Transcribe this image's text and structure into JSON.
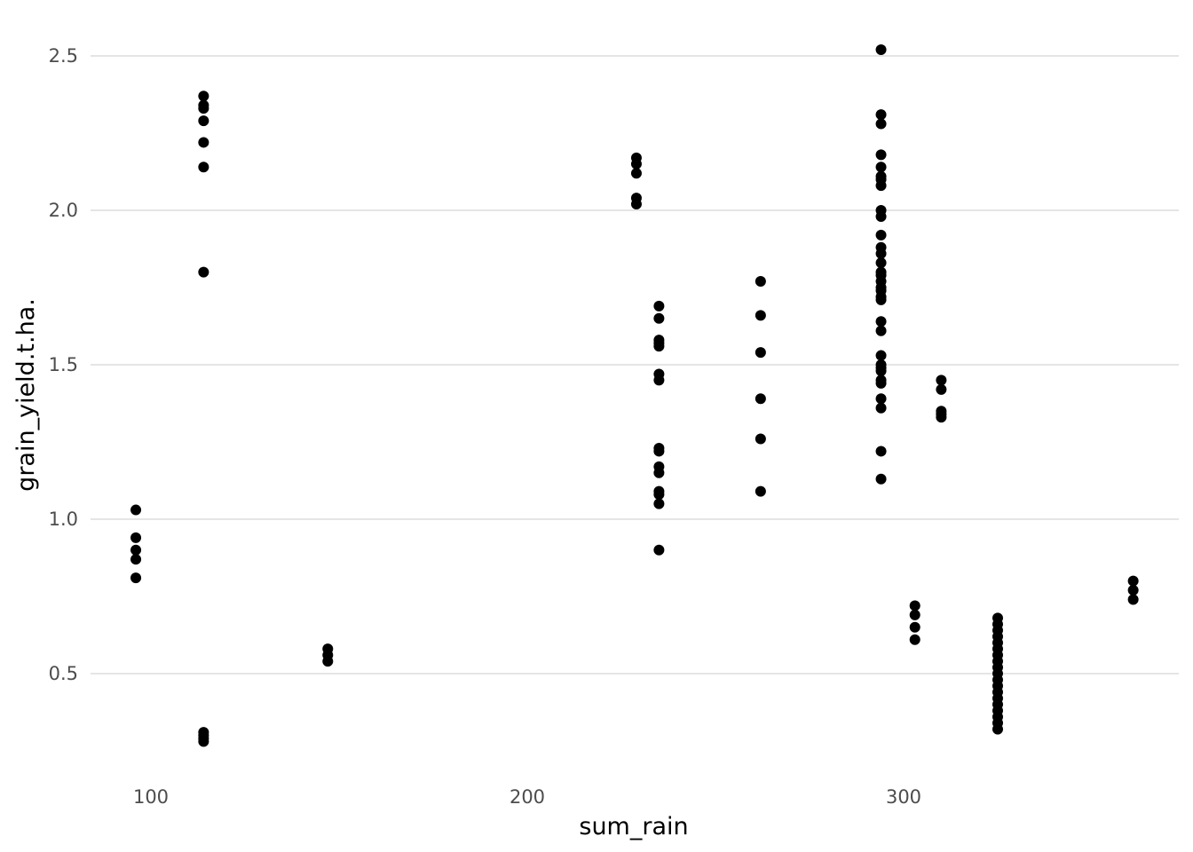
{
  "chart_data": {
    "type": "scatter",
    "title": "",
    "xlabel": "sum_rain",
    "ylabel": "grain_yield.t.ha.",
    "xlim": [
      84,
      378
    ],
    "ylim": [
      0.2,
      2.57
    ],
    "x_ticks": [
      100,
      200,
      300
    ],
    "y_ticks": [
      0.5,
      1.0,
      1.5,
      2.0,
      2.5
    ],
    "x_tick_labels": [
      "100",
      "200",
      "300"
    ],
    "y_tick_labels": [
      "0.5",
      "1.0",
      "1.5",
      "2.0",
      "2.5"
    ],
    "grid": true,
    "legend": "none",
    "point_color": "#000000",
    "points": [
      {
        "x": 96,
        "y": 1.03
      },
      {
        "x": 96,
        "y": 0.94
      },
      {
        "x": 96,
        "y": 0.9
      },
      {
        "x": 96,
        "y": 0.87
      },
      {
        "x": 96,
        "y": 0.81
      },
      {
        "x": 114,
        "y": 2.37
      },
      {
        "x": 114,
        "y": 2.34
      },
      {
        "x": 114,
        "y": 2.33
      },
      {
        "x": 114,
        "y": 2.29
      },
      {
        "x": 114,
        "y": 2.22
      },
      {
        "x": 114,
        "y": 2.14
      },
      {
        "x": 114,
        "y": 1.8
      },
      {
        "x": 114,
        "y": 0.31
      },
      {
        "x": 114,
        "y": 0.3
      },
      {
        "x": 114,
        "y": 0.29
      },
      {
        "x": 114,
        "y": 0.28
      },
      {
        "x": 147,
        "y": 0.58
      },
      {
        "x": 147,
        "y": 0.56
      },
      {
        "x": 147,
        "y": 0.54
      },
      {
        "x": 229,
        "y": 2.17
      },
      {
        "x": 229,
        "y": 2.15
      },
      {
        "x": 229,
        "y": 2.12
      },
      {
        "x": 229,
        "y": 2.04
      },
      {
        "x": 229,
        "y": 2.02
      },
      {
        "x": 235,
        "y": 1.69
      },
      {
        "x": 235,
        "y": 1.65
      },
      {
        "x": 235,
        "y": 1.58
      },
      {
        "x": 235,
        "y": 1.57
      },
      {
        "x": 235,
        "y": 1.56
      },
      {
        "x": 235,
        "y": 1.47
      },
      {
        "x": 235,
        "y": 1.45
      },
      {
        "x": 235,
        "y": 1.23
      },
      {
        "x": 235,
        "y": 1.22
      },
      {
        "x": 235,
        "y": 1.17
      },
      {
        "x": 235,
        "y": 1.15
      },
      {
        "x": 235,
        "y": 1.09
      },
      {
        "x": 235,
        "y": 1.08
      },
      {
        "x": 235,
        "y": 1.05
      },
      {
        "x": 235,
        "y": 0.9
      },
      {
        "x": 262,
        "y": 1.77
      },
      {
        "x": 262,
        "y": 1.66
      },
      {
        "x": 262,
        "y": 1.54
      },
      {
        "x": 262,
        "y": 1.39
      },
      {
        "x": 262,
        "y": 1.26
      },
      {
        "x": 262,
        "y": 1.09
      },
      {
        "x": 294,
        "y": 2.52
      },
      {
        "x": 294,
        "y": 2.31
      },
      {
        "x": 294,
        "y": 2.28
      },
      {
        "x": 294,
        "y": 2.18
      },
      {
        "x": 294,
        "y": 2.14
      },
      {
        "x": 294,
        "y": 2.11
      },
      {
        "x": 294,
        "y": 2.1
      },
      {
        "x": 294,
        "y": 2.08
      },
      {
        "x": 294,
        "y": 2.0
      },
      {
        "x": 294,
        "y": 1.98
      },
      {
        "x": 294,
        "y": 1.92
      },
      {
        "x": 294,
        "y": 1.88
      },
      {
        "x": 294,
        "y": 1.86
      },
      {
        "x": 294,
        "y": 1.83
      },
      {
        "x": 294,
        "y": 1.8
      },
      {
        "x": 294,
        "y": 1.79
      },
      {
        "x": 294,
        "y": 1.77
      },
      {
        "x": 294,
        "y": 1.75
      },
      {
        "x": 294,
        "y": 1.74
      },
      {
        "x": 294,
        "y": 1.72
      },
      {
        "x": 294,
        "y": 1.71
      },
      {
        "x": 294,
        "y": 1.64
      },
      {
        "x": 294,
        "y": 1.61
      },
      {
        "x": 294,
        "y": 1.53
      },
      {
        "x": 294,
        "y": 1.5
      },
      {
        "x": 294,
        "y": 1.49
      },
      {
        "x": 294,
        "y": 1.48
      },
      {
        "x": 294,
        "y": 1.45
      },
      {
        "x": 294,
        "y": 1.44
      },
      {
        "x": 294,
        "y": 1.39
      },
      {
        "x": 294,
        "y": 1.36
      },
      {
        "x": 294,
        "y": 1.22
      },
      {
        "x": 294,
        "y": 1.13
      },
      {
        "x": 303,
        "y": 0.72
      },
      {
        "x": 303,
        "y": 0.69
      },
      {
        "x": 303,
        "y": 0.65
      },
      {
        "x": 303,
        "y": 0.61
      },
      {
        "x": 310,
        "y": 1.45
      },
      {
        "x": 310,
        "y": 1.42
      },
      {
        "x": 310,
        "y": 1.35
      },
      {
        "x": 310,
        "y": 1.34
      },
      {
        "x": 310,
        "y": 1.33
      },
      {
        "x": 325,
        "y": 0.68
      },
      {
        "x": 325,
        "y": 0.66
      },
      {
        "x": 325,
        "y": 0.64
      },
      {
        "x": 325,
        "y": 0.62
      },
      {
        "x": 325,
        "y": 0.6
      },
      {
        "x": 325,
        "y": 0.58
      },
      {
        "x": 325,
        "y": 0.56
      },
      {
        "x": 325,
        "y": 0.54
      },
      {
        "x": 325,
        "y": 0.52
      },
      {
        "x": 325,
        "y": 0.5
      },
      {
        "x": 325,
        "y": 0.48
      },
      {
        "x": 325,
        "y": 0.46
      },
      {
        "x": 325,
        "y": 0.44
      },
      {
        "x": 325,
        "y": 0.42
      },
      {
        "x": 325,
        "y": 0.4
      },
      {
        "x": 325,
        "y": 0.38
      },
      {
        "x": 325,
        "y": 0.36
      },
      {
        "x": 325,
        "y": 0.34
      },
      {
        "x": 325,
        "y": 0.32
      },
      {
        "x": 361,
        "y": 0.8
      },
      {
        "x": 361,
        "y": 0.77
      },
      {
        "x": 361,
        "y": 0.74
      }
    ]
  }
}
